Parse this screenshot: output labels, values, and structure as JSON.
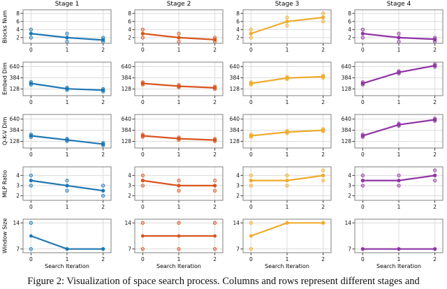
{
  "figure": {
    "caption": "Figure 2: Visualization of space search process. Columns and rows represent different stages and"
  },
  "chart_data": {
    "type": "line",
    "x": [
      0,
      1,
      2
    ],
    "xlabel": "Search Iteration",
    "grid": true,
    "legend": "none",
    "columns": [
      {
        "title": "Stage 1",
        "color": "#1f77b4"
      },
      {
        "title": "Stage 2",
        "color": "#d9541e"
      },
      {
        "title": "Stage 3",
        "color": "#eeab2d"
      },
      {
        "title": "Stage 4",
        "color": "#8f35a3"
      }
    ],
    "rows": [
      {
        "ylabel": "Blocks Num",
        "yticks": [
          2,
          4,
          6,
          8
        ],
        "ylim": [
          0.6,
          8.9
        ],
        "cells": [
          {
            "line": [
              3,
              2,
              1.4
            ],
            "scatter": [
              [
                4,
                3,
                2
              ],
              [
                3,
                2,
                1
              ],
              [
                2,
                1.5,
                1
              ]
            ]
          },
          {
            "line": [
              3,
              2,
              1.5
            ],
            "scatter": [
              [
                4,
                3,
                2
              ],
              [
                3,
                2,
                1
              ],
              [
                2,
                1.5,
                1
              ]
            ]
          },
          {
            "line": [
              3,
              6,
              7
            ],
            "scatter": [
              [
                4,
                3,
                2
              ],
              [
                7,
                6,
                5
              ],
              [
                8,
                7,
                6
              ]
            ]
          },
          {
            "line": [
              3,
              2,
              1.6
            ],
            "scatter": [
              [
                4,
                3,
                2
              ],
              [
                3,
                2,
                1
              ],
              [
                2,
                1.5,
                1
              ]
            ]
          }
        ]
      },
      {
        "ylabel": "Embed Dim",
        "yticks": [
          128,
          384,
          640
        ],
        "ylim": [
          -25,
          745
        ],
        "cells": [
          {
            "line": [
              256,
              132,
              100
            ],
            "scatter": [
              [
                288,
                256,
                224
              ],
              [
                160,
                132,
                104
              ],
              [
                128,
                100,
                72
              ]
            ]
          },
          {
            "line": [
              256,
              192,
              156
            ],
            "scatter": [
              [
                284,
                256,
                228
              ],
              [
                220,
                192,
                164
              ],
              [
                184,
                156,
                128
              ]
            ]
          },
          {
            "line": [
              256,
              380,
              410
            ],
            "scatter": [
              [
                284,
                256,
                228
              ],
              [
                408,
                380,
                352
              ],
              [
                438,
                410,
                382
              ]
            ]
          },
          {
            "line": [
              256,
              510,
              665
            ],
            "scatter": [
              [
                284,
                256,
                228
              ],
              [
                538,
                510,
                482
              ],
              [
                693,
                665,
                637
              ]
            ]
          }
        ]
      },
      {
        "ylabel": "Q-K-V Dim",
        "yticks": [
          128,
          384,
          640
        ],
        "ylim": [
          -25,
          745
        ],
        "cells": [
          {
            "line": [
              256,
              160,
              64
            ],
            "scatter": [
              [
                288,
                256,
                224
              ],
              [
                188,
                160,
                132
              ],
              [
                92,
                64,
                36
              ]
            ]
          },
          {
            "line": [
              256,
              190,
              158
            ],
            "scatter": [
              [
                284,
                256,
                228
              ],
              [
                218,
                190,
                162
              ],
              [
                186,
                158,
                130
              ]
            ]
          },
          {
            "line": [
              256,
              340,
              382
            ],
            "scatter": [
              [
                284,
                256,
                228
              ],
              [
                368,
                340,
                312
              ],
              [
                410,
                382,
                354
              ]
            ]
          },
          {
            "line": [
              256,
              510,
              625
            ],
            "scatter": [
              [
                284,
                256,
                228
              ],
              [
                538,
                510,
                482
              ],
              [
                653,
                625,
                597
              ]
            ]
          }
        ]
      },
      {
        "ylabel": "MLP Ratio",
        "yticks": [
          2,
          3,
          4
        ],
        "ylim": [
          1.55,
          4.85
        ],
        "cells": [
          {
            "line": [
              3.5,
              3.0,
              2.5
            ],
            "scatter": [
              [
                4,
                3.5,
                3
              ],
              [
                3.5,
                3,
                2.5
              ],
              [
                3,
                2.5,
                2
              ]
            ]
          },
          {
            "line": [
              3.5,
              3.0,
              3.0
            ],
            "scatter": [
              [
                4,
                3.5,
                3
              ],
              [
                3.5,
                3,
                2.5
              ],
              [
                3.5,
                3,
                2.5
              ]
            ]
          },
          {
            "line": [
              3.5,
              3.5,
              4.0
            ],
            "scatter": [
              [
                4,
                3.5,
                3
              ],
              [
                4,
                3.5,
                3
              ],
              [
                4.5,
                4,
                3.5
              ]
            ]
          },
          {
            "line": [
              3.5,
              3.5,
              4.0
            ],
            "scatter": [
              [
                4,
                3.5,
                3
              ],
              [
                4,
                3.5,
                3
              ],
              [
                4.5,
                4,
                3.5
              ]
            ]
          }
        ]
      },
      {
        "ylabel": "Window Size",
        "yticks": [
          7,
          14
        ],
        "ylim": [
          6.0,
          15.0
        ],
        "cells": [
          {
            "line": [
              10.5,
              7,
              7
            ],
            "scatter": [
              [
                14,
                7
              ],
              [
                7
              ],
              [
                7
              ]
            ]
          },
          {
            "line": [
              10.5,
              10.5,
              10.5
            ],
            "scatter": [
              [
                14,
                7
              ],
              [
                14,
                7
              ],
              [
                14,
                7
              ]
            ]
          },
          {
            "line": [
              10.5,
              14,
              14
            ],
            "scatter": [
              [
                14,
                7
              ],
              [
                14
              ],
              [
                14
              ]
            ]
          },
          {
            "line": [
              7,
              7,
              7
            ],
            "scatter": [
              [
                7
              ],
              [
                7
              ],
              [
                7
              ]
            ]
          }
        ]
      }
    ]
  }
}
